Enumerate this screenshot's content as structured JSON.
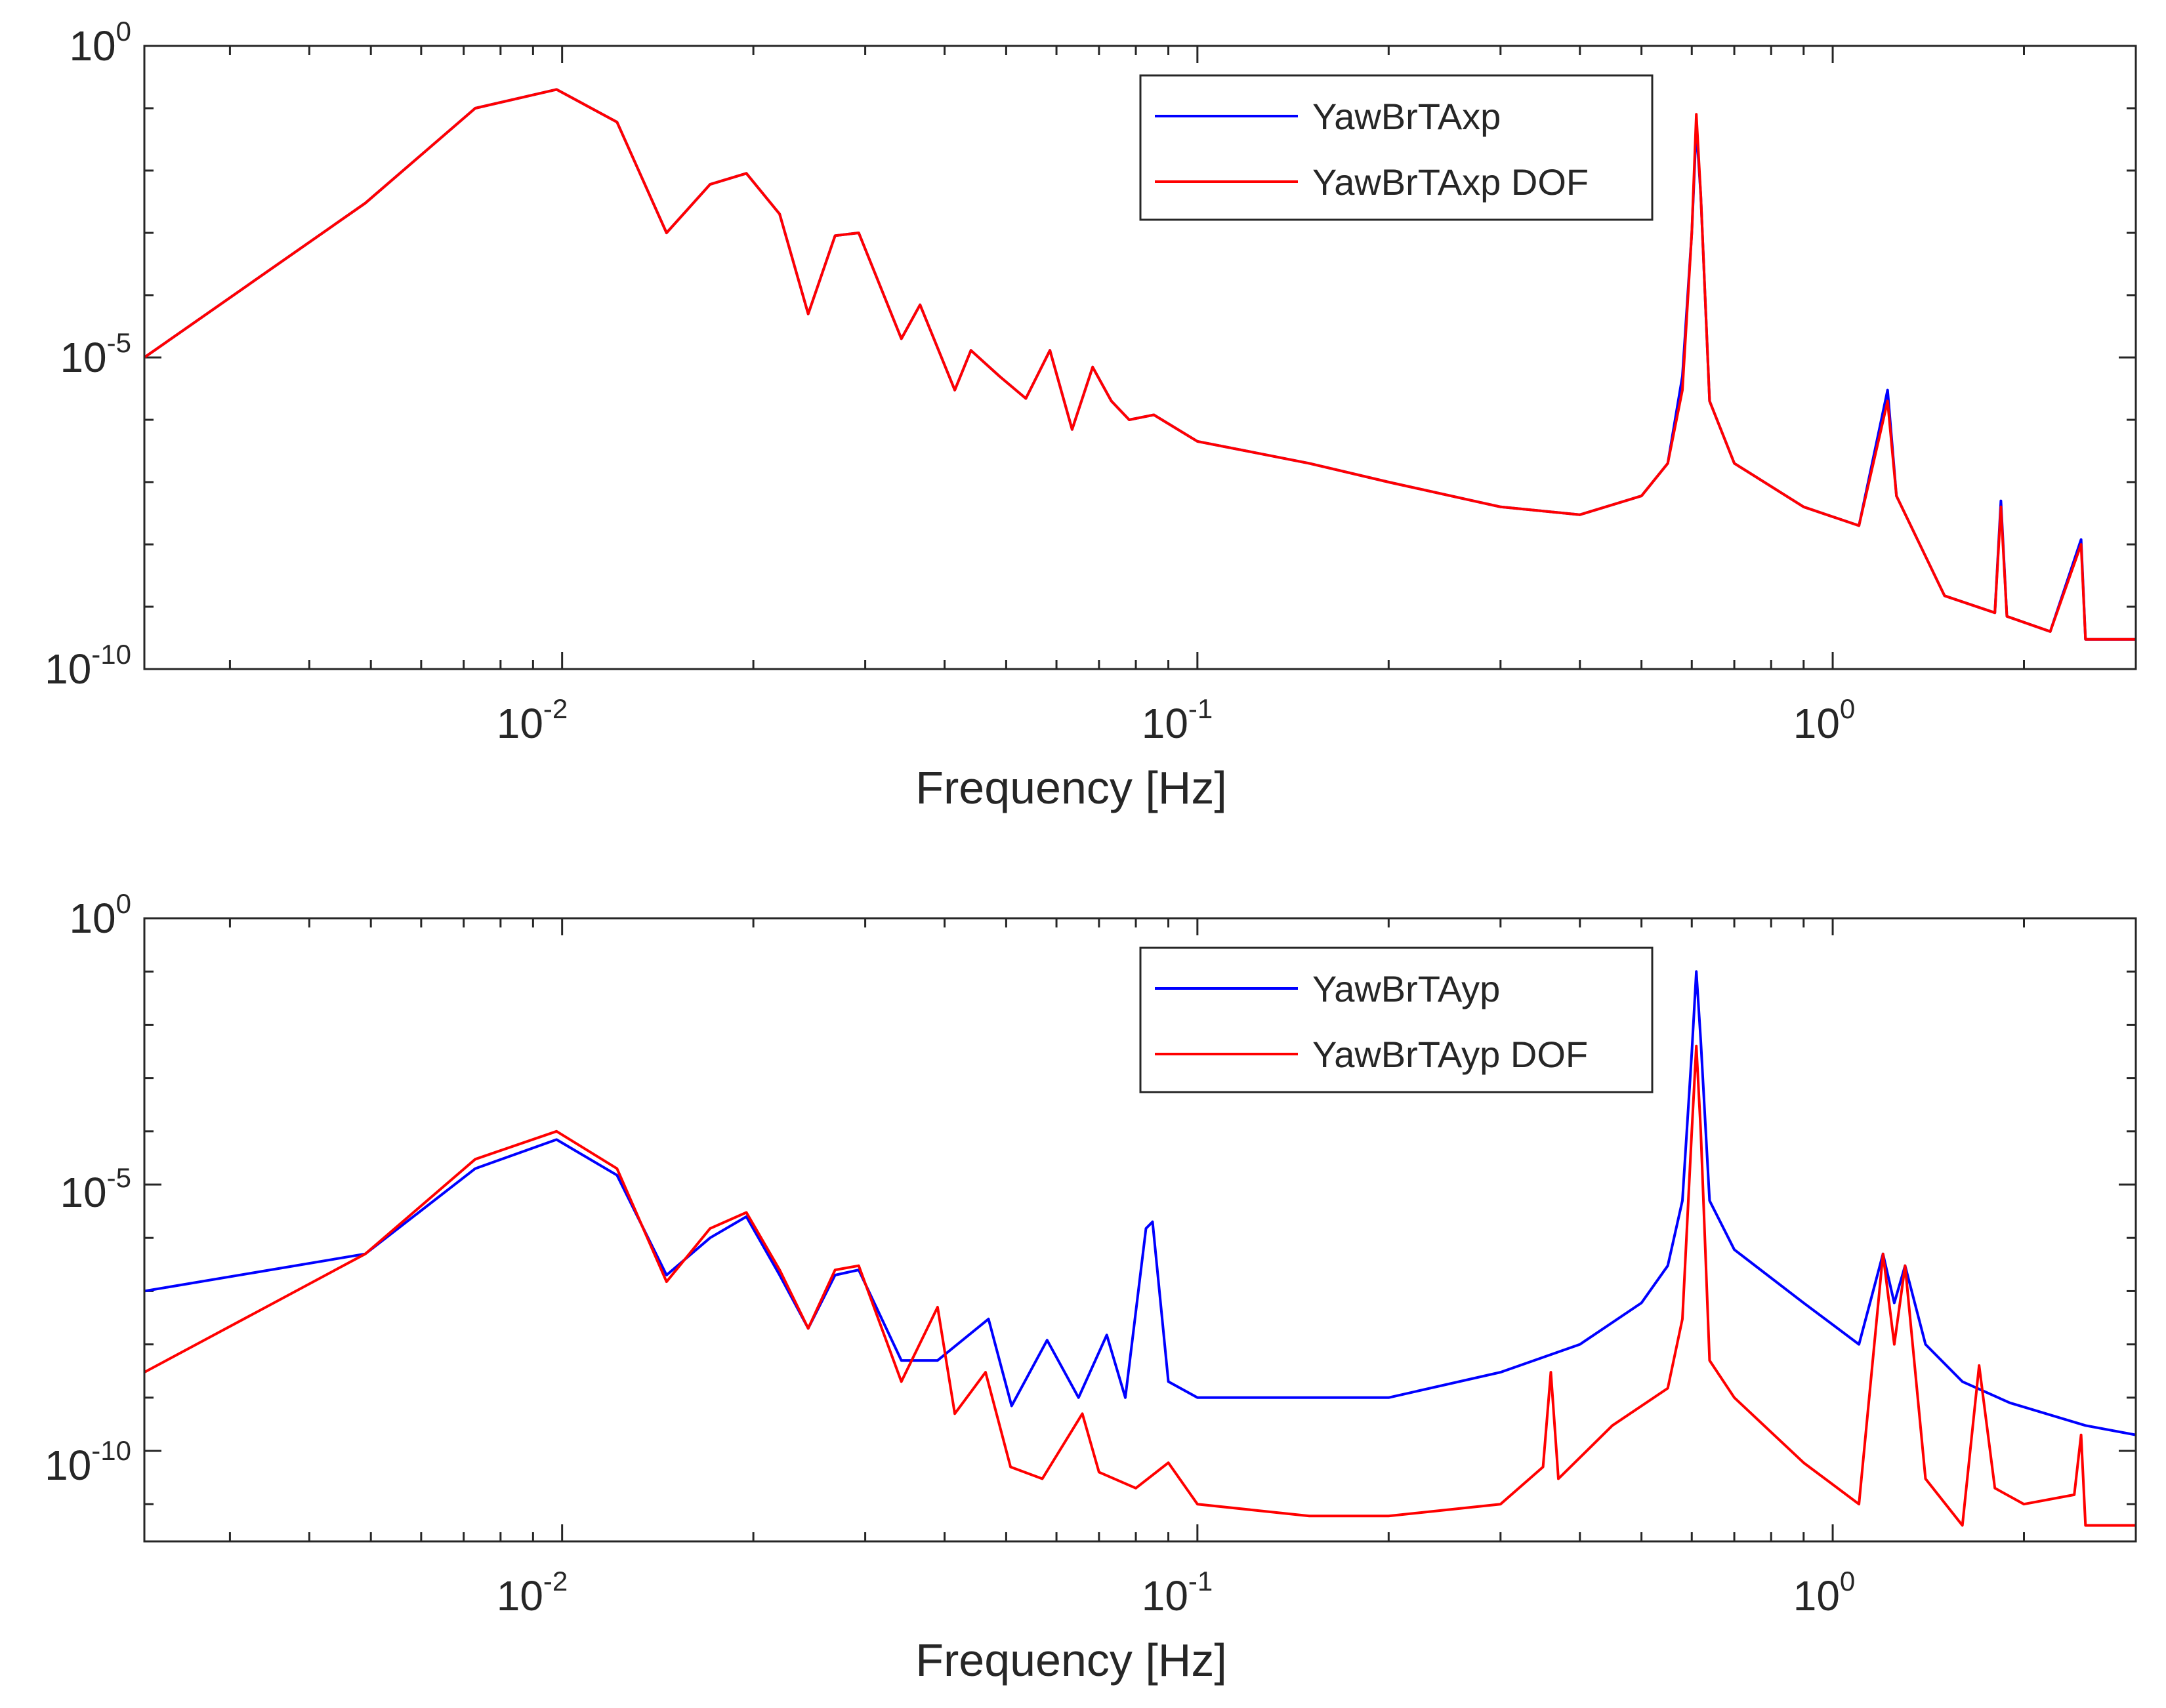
{
  "chart_data": [
    {
      "type": "line",
      "x_scale": "log",
      "y_scale": "log",
      "xlabel": "Frequency [Hz]",
      "ylabel": "",
      "xlim": [
        0.0022,
        3.0
      ],
      "ylim": [
        1e-10,
        1
      ],
      "x_ticks": [
        {
          "base": "10",
          "exp": "-2"
        },
        {
          "base": "10",
          "exp": "-1"
        },
        {
          "base": "10",
          "exp": "0"
        }
      ],
      "y_ticks": [
        {
          "base": "10",
          "exp": "0"
        },
        {
          "base": "10",
          "exp": "-5"
        },
        {
          "base": "10",
          "exp": "-10"
        }
      ],
      "legend_position": "top-right",
      "series": [
        {
          "name": "YawBrTAxp",
          "color": "#0000ff",
          "points": [
            [
              0.0022,
              1e-05
            ],
            [
              0.0049,
              0.003
            ],
            [
              0.0073,
              0.1
            ],
            [
              0.0098,
              0.2
            ],
            [
              0.0122,
              0.06
            ],
            [
              0.0146,
              0.001
            ],
            [
              0.0171,
              0.006
            ],
            [
              0.0195,
              0.009
            ],
            [
              0.022,
              0.002
            ],
            [
              0.0244,
              5e-05
            ],
            [
              0.0269,
              0.0009
            ],
            [
              0.0293,
              0.001
            ],
            [
              0.0342,
              2e-05
            ],
            [
              0.0366,
              7e-05
            ],
            [
              0.0415,
              3e-06
            ],
            [
              0.044,
              1.3e-05
            ],
            [
              0.0488,
              5e-06
            ],
            [
              0.0537,
              2.2e-06
            ],
            [
              0.0586,
              1.3e-05
            ],
            [
              0.0635,
              7e-07
            ],
            [
              0.0684,
              7e-06
            ],
            [
              0.0732,
              2e-06
            ],
            [
              0.0781,
              1e-06
            ],
            [
              0.0854,
              1.2e-06
            ],
            [
              0.1,
              4.5e-07
            ],
            [
              0.15,
              2e-07
            ],
            [
              0.2,
              1e-07
            ],
            [
              0.3,
              4e-08
            ],
            [
              0.4,
              3e-08
            ],
            [
              0.5,
              6e-08
            ],
            [
              0.55,
              2e-07
            ],
            [
              0.58,
              5e-06
            ],
            [
              0.6,
              0.001
            ],
            [
              0.61,
              0.05
            ],
            [
              0.62,
              0.004
            ],
            [
              0.64,
              2e-06
            ],
            [
              0.7,
              2e-07
            ],
            [
              0.9,
              4e-08
            ],
            [
              1.1,
              2e-08
            ],
            [
              1.22,
              3e-06
            ],
            [
              1.26,
              6e-08
            ],
            [
              1.5,
              1.5e-09
            ],
            [
              1.8,
              8e-10
            ],
            [
              1.84,
              5e-08
            ],
            [
              1.88,
              7e-10
            ],
            [
              2.2,
              4e-10
            ],
            [
              2.46,
              1.2e-08
            ],
            [
              2.5,
              3e-10
            ],
            [
              3.0,
              3e-10
            ]
          ]
        },
        {
          "name": "YawBrTAxp DOF",
          "color": "#ff0000",
          "points": [
            [
              0.0022,
              1e-05
            ],
            [
              0.0049,
              0.003
            ],
            [
              0.0073,
              0.1
            ],
            [
              0.0098,
              0.2
            ],
            [
              0.0122,
              0.06
            ],
            [
              0.0146,
              0.001
            ],
            [
              0.0171,
              0.006
            ],
            [
              0.0195,
              0.009
            ],
            [
              0.022,
              0.002
            ],
            [
              0.0244,
              5e-05
            ],
            [
              0.0269,
              0.0009
            ],
            [
              0.0293,
              0.001
            ],
            [
              0.0342,
              2e-05
            ],
            [
              0.0366,
              7e-05
            ],
            [
              0.0415,
              3e-06
            ],
            [
              0.044,
              1.3e-05
            ],
            [
              0.0488,
              5e-06
            ],
            [
              0.0537,
              2.2e-06
            ],
            [
              0.0586,
              1.3e-05
            ],
            [
              0.0635,
              7e-07
            ],
            [
              0.0684,
              7e-06
            ],
            [
              0.0732,
              2e-06
            ],
            [
              0.0781,
              1e-06
            ],
            [
              0.0854,
              1.2e-06
            ],
            [
              0.1,
              4.5e-07
            ],
            [
              0.15,
              2e-07
            ],
            [
              0.2,
              1e-07
            ],
            [
              0.3,
              4e-08
            ],
            [
              0.4,
              3e-08
            ],
            [
              0.5,
              6e-08
            ],
            [
              0.55,
              2e-07
            ],
            [
              0.58,
              3e-06
            ],
            [
              0.6,
              0.001
            ],
            [
              0.61,
              0.08
            ],
            [
              0.62,
              0.004
            ],
            [
              0.64,
              2e-06
            ],
            [
              0.7,
              2e-07
            ],
            [
              0.9,
              4e-08
            ],
            [
              1.1,
              2e-08
            ],
            [
              1.22,
              2e-06
            ],
            [
              1.26,
              6e-08
            ],
            [
              1.5,
              1.5e-09
            ],
            [
              1.8,
              8e-10
            ],
            [
              1.84,
              4e-08
            ],
            [
              1.88,
              7e-10
            ],
            [
              2.2,
              4e-10
            ],
            [
              2.46,
              1e-08
            ],
            [
              2.5,
              3e-10
            ],
            [
              3.0,
              3e-10
            ]
          ]
        }
      ]
    },
    {
      "type": "line",
      "x_scale": "log",
      "y_scale": "log",
      "xlabel": "Frequency [Hz]",
      "ylabel": "",
      "xlim": [
        0.0022,
        3.0
      ],
      "ylim": [
        2e-12,
        1
      ],
      "x_ticks": [
        {
          "base": "10",
          "exp": "-2"
        },
        {
          "base": "10",
          "exp": "-1"
        },
        {
          "base": "10",
          "exp": "0"
        }
      ],
      "y_ticks": [
        {
          "base": "10",
          "exp": "0"
        },
        {
          "base": "10",
          "exp": "-5"
        },
        {
          "base": "10",
          "exp": "-10"
        }
      ],
      "legend_position": "top-right",
      "series": [
        {
          "name": "YawBrTAyp",
          "color": "#0000ff",
          "points": [
            [
              0.0022,
              1e-07
            ],
            [
              0.0049,
              5e-07
            ],
            [
              0.0073,
              2e-05
            ],
            [
              0.0098,
              7e-05
            ],
            [
              0.0122,
              1.5e-05
            ],
            [
              0.0146,
              2e-07
            ],
            [
              0.0171,
              1e-06
            ],
            [
              0.0195,
              2.5e-06
            ],
            [
              0.022,
              2e-07
            ],
            [
              0.0244,
              2e-08
            ],
            [
              0.0269,
              2e-07
            ],
            [
              0.0293,
              2.5e-07
            ],
            [
              0.0342,
              5e-09
            ],
            [
              0.039,
              5e-09
            ],
            [
              0.0469,
              3e-08
            ],
            [
              0.051,
              7e-10
            ],
            [
              0.058,
              1.2e-08
            ],
            [
              0.065,
              1e-09
            ],
            [
              0.072,
              1.5e-08
            ],
            [
              0.077,
              1e-09
            ],
            [
              0.083,
              1.5e-06
            ],
            [
              0.085,
              2e-06
            ],
            [
              0.09,
              2e-09
            ],
            [
              0.1,
              1e-09
            ],
            [
              0.2,
              1e-09
            ],
            [
              0.3,
              3e-09
            ],
            [
              0.4,
              1e-08
            ],
            [
              0.5,
              6e-08
            ],
            [
              0.55,
              3e-07
            ],
            [
              0.58,
              5e-06
            ],
            [
              0.6,
              0.003
            ],
            [
              0.61,
              0.1
            ],
            [
              0.62,
              0.005
            ],
            [
              0.64,
              5e-06
            ],
            [
              0.7,
              6e-07
            ],
            [
              0.9,
              6e-08
            ],
            [
              1.1,
              1e-08
            ],
            [
              1.2,
              5e-07
            ],
            [
              1.25,
              6e-08
            ],
            [
              1.3,
              3e-07
            ],
            [
              1.4,
              1e-08
            ],
            [
              1.6,
              2e-09
            ],
            [
              1.9,
              8e-10
            ],
            [
              2.5,
              3e-10
            ],
            [
              3.0,
              2e-10
            ]
          ]
        },
        {
          "name": "YawBrTAyp DOF",
          "color": "#ff0000",
          "points": [
            [
              0.0022,
              3e-09
            ],
            [
              0.0049,
              5e-07
            ],
            [
              0.0073,
              3e-05
            ],
            [
              0.0098,
              0.0001
            ],
            [
              0.0122,
              2e-05
            ],
            [
              0.0146,
              1.5e-07
            ],
            [
              0.0171,
              1.5e-06
            ],
            [
              0.0195,
              3e-06
            ],
            [
              0.022,
              2.5e-07
            ],
            [
              0.0244,
              2e-08
            ],
            [
              0.0269,
              2.5e-07
            ],
            [
              0.0293,
              3e-07
            ],
            [
              0.0342,
              2e-09
            ],
            [
              0.039,
              5e-08
            ],
            [
              0.0415,
              5e-10
            ],
            [
              0.0464,
              3e-09
            ],
            [
              0.0508,
              5e-11
            ],
            [
              0.057,
              3e-11
            ],
            [
              0.0659,
              5e-10
            ],
            [
              0.07,
              4e-11
            ],
            [
              0.08,
              2e-11
            ],
            [
              0.09,
              6e-11
            ],
            [
              0.1,
              1e-11
            ],
            [
              0.15,
              6e-12
            ],
            [
              0.2,
              6e-12
            ],
            [
              0.3,
              1e-11
            ],
            [
              0.35,
              5e-11
            ],
            [
              0.36,
              3e-09
            ],
            [
              0.37,
              3e-11
            ],
            [
              0.45,
              3e-10
            ],
            [
              0.55,
              1.5e-09
            ],
            [
              0.58,
              3e-08
            ],
            [
              0.6,
              0.0001
            ],
            [
              0.61,
              0.004
            ],
            [
              0.62,
              0.0001
            ],
            [
              0.64,
              5e-09
            ],
            [
              0.7,
              1e-09
            ],
            [
              0.9,
              6e-11
            ],
            [
              1.1,
              1e-11
            ],
            [
              1.2,
              5e-07
            ],
            [
              1.25,
              1e-08
            ],
            [
              1.3,
              3e-07
            ],
            [
              1.4,
              3e-11
            ],
            [
              1.6,
              4e-12
            ],
            [
              1.7,
              4e-09
            ],
            [
              1.8,
              2e-11
            ],
            [
              2.0,
              1e-11
            ],
            [
              2.4,
              1.5e-11
            ],
            [
              2.46,
              2e-10
            ],
            [
              2.5,
              4e-12
            ],
            [
              3.0,
              4e-12
            ]
          ]
        }
      ]
    }
  ]
}
